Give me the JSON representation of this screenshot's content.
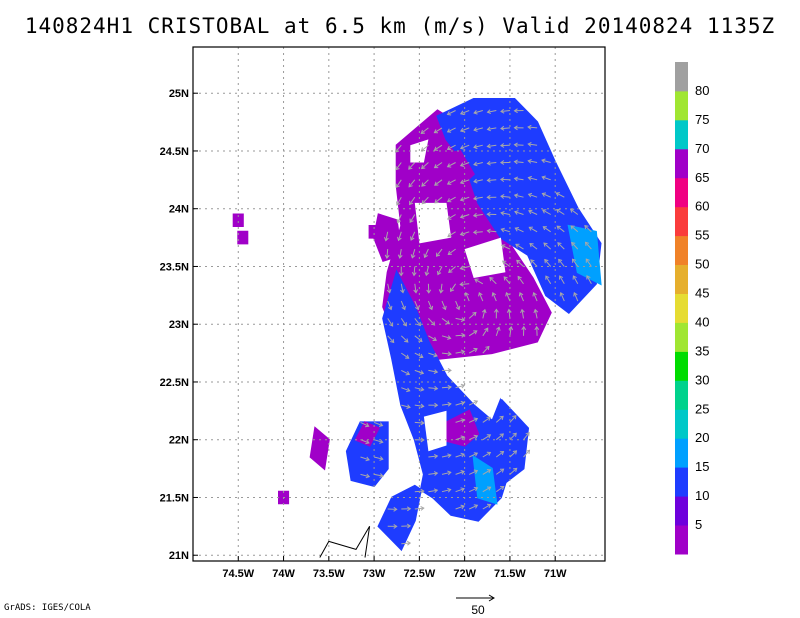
{
  "title": "140824H1 CRISTOBAL at 6.5 km (m/s) Valid 20140824 1135Z",
  "credit": "GrADS: IGES/COLA",
  "vector_reference": {
    "label": "50",
    "value": 50
  },
  "chart_data": {
    "type": "heatmap",
    "title": "140824H1 CRISTOBAL at 6.5 km (m/s) Valid 20140824 1135Z",
    "xlabel": "",
    "ylabel": "",
    "xlim": [
      -75,
      -70.45
    ],
    "ylim": [
      20.95,
      25.4
    ],
    "grid": true,
    "x_ticks": [
      {
        "value": -74.5,
        "label": "74.5W"
      },
      {
        "value": -74.0,
        "label": "74W"
      },
      {
        "value": -73.5,
        "label": "73.5W"
      },
      {
        "value": -73.0,
        "label": "73W"
      },
      {
        "value": -72.5,
        "label": "72.5W"
      },
      {
        "value": -72.0,
        "label": "72W"
      },
      {
        "value": -71.5,
        "label": "71.5W"
      },
      {
        "value": -71.0,
        "label": "71W"
      }
    ],
    "y_ticks": [
      {
        "value": 21.0,
        "label": "21N"
      },
      {
        "value": 21.5,
        "label": "21.5N"
      },
      {
        "value": 22.0,
        "label": "22N"
      },
      {
        "value": 22.5,
        "label": "22.5N"
      },
      {
        "value": 23.0,
        "label": "23N"
      },
      {
        "value": 23.5,
        "label": "23.5N"
      },
      {
        "value": 24.0,
        "label": "24N"
      },
      {
        "value": 24.5,
        "label": "24.5N"
      },
      {
        "value": 25.0,
        "label": "25N"
      }
    ],
    "colorbar": [
      {
        "from": 0,
        "to": 5,
        "color": "#a000c8",
        "label": ""
      },
      {
        "from": 5,
        "to": 10,
        "color": "#6e00dc",
        "label": "5"
      },
      {
        "from": 10,
        "to": 15,
        "color": "#1e3cff",
        "label": "10"
      },
      {
        "from": 15,
        "to": 20,
        "color": "#00a0ff",
        "label": "15"
      },
      {
        "from": 20,
        "to": 25,
        "color": "#00c8c8",
        "label": "20"
      },
      {
        "from": 25,
        "to": 30,
        "color": "#00d28c",
        "label": "25"
      },
      {
        "from": 30,
        "to": 35,
        "color": "#00dc00",
        "label": "30"
      },
      {
        "from": 35,
        "to": 40,
        "color": "#a0e632",
        "label": "35"
      },
      {
        "from": 40,
        "to": 45,
        "color": "#e6dc32",
        "label": "40"
      },
      {
        "from": 45,
        "to": 50,
        "color": "#e6af2d",
        "label": "45"
      },
      {
        "from": 50,
        "to": 55,
        "color": "#f08228",
        "label": "50"
      },
      {
        "from": 55,
        "to": 60,
        "color": "#fa3c3c",
        "label": "55"
      },
      {
        "from": 60,
        "to": 65,
        "color": "#f00082",
        "label": "60"
      },
      {
        "from": 65,
        "to": 70,
        "color": "#a000c8",
        "label": "65"
      },
      {
        "from": 70,
        "to": 75,
        "color": "#00c8c8",
        "label": "70"
      },
      {
        "from": 75,
        "to": 80,
        "color": "#a0e632",
        "label": "75"
      },
      {
        "from": 80,
        "to": 85,
        "color": "#a0a0a0",
        "label": "80"
      }
    ],
    "regions": [
      {
        "name": "main-core",
        "color": "#a000c8",
        "points": [
          [
            -72.75,
            24.55
          ],
          [
            -72.3,
            24.85
          ],
          [
            -71.9,
            24.65
          ],
          [
            -71.6,
            24.25
          ],
          [
            -71.55,
            23.75
          ],
          [
            -71.25,
            23.4
          ],
          [
            -71.05,
            23.1
          ],
          [
            -71.2,
            22.85
          ],
          [
            -71.7,
            22.75
          ],
          [
            -72.3,
            22.7
          ],
          [
            -72.55,
            22.6
          ],
          [
            -72.75,
            22.85
          ],
          [
            -72.9,
            23.15
          ],
          [
            -72.85,
            23.45
          ],
          [
            -72.7,
            23.85
          ],
          [
            -72.75,
            24.2
          ]
        ]
      },
      {
        "name": "north-arc",
        "color": "#1e3cff",
        "points": [
          [
            -72.3,
            24.8
          ],
          [
            -71.9,
            24.95
          ],
          [
            -71.45,
            24.95
          ],
          [
            -71.2,
            24.75
          ],
          [
            -71.0,
            24.4
          ],
          [
            -70.75,
            24.0
          ],
          [
            -70.5,
            23.7
          ],
          [
            -70.55,
            23.35
          ],
          [
            -70.85,
            23.1
          ],
          [
            -71.1,
            23.25
          ],
          [
            -71.3,
            23.6
          ],
          [
            -71.6,
            23.75
          ],
          [
            -71.85,
            24.05
          ],
          [
            -72.0,
            24.4
          ],
          [
            -72.2,
            24.6
          ]
        ]
      },
      {
        "name": "west-band",
        "color": "#1e3cff",
        "points": [
          [
            -72.75,
            23.45
          ],
          [
            -72.55,
            23.15
          ],
          [
            -72.4,
            22.85
          ],
          [
            -72.2,
            22.55
          ],
          [
            -71.9,
            22.3
          ],
          [
            -71.6,
            22.1
          ],
          [
            -71.5,
            21.75
          ],
          [
            -71.6,
            21.5
          ],
          [
            -71.85,
            21.3
          ],
          [
            -72.15,
            21.35
          ],
          [
            -72.35,
            21.5
          ],
          [
            -72.55,
            21.6
          ],
          [
            -72.8,
            21.5
          ],
          [
            -72.95,
            21.25
          ],
          [
            -72.7,
            21.05
          ],
          [
            -72.55,
            21.3
          ],
          [
            -72.45,
            21.7
          ],
          [
            -72.55,
            22.0
          ],
          [
            -72.7,
            22.3
          ],
          [
            -72.8,
            22.7
          ],
          [
            -72.9,
            23.05
          ]
        ]
      },
      {
        "name": "central-spiral",
        "color": "#a000c8",
        "points": [
          [
            -72.2,
            22.15
          ],
          [
            -71.95,
            22.25
          ],
          [
            -71.85,
            22.05
          ],
          [
            -72.0,
            21.95
          ],
          [
            -72.25,
            22.0
          ]
        ]
      },
      {
        "name": "east-tail",
        "color": "#1e3cff",
        "points": [
          [
            -71.6,
            22.35
          ],
          [
            -71.3,
            22.1
          ],
          [
            -71.35,
            21.75
          ],
          [
            -71.6,
            21.6
          ],
          [
            -71.75,
            21.85
          ],
          [
            -71.7,
            22.15
          ]
        ]
      },
      {
        "name": "southwest-patch",
        "color": "#1e3cff",
        "points": [
          [
            -73.15,
            22.15
          ],
          [
            -72.85,
            22.15
          ],
          [
            -72.85,
            21.75
          ],
          [
            -73.0,
            21.6
          ],
          [
            -73.25,
            21.65
          ],
          [
            -73.3,
            21.9
          ]
        ]
      },
      {
        "name": "southwest-core",
        "color": "#a000c8",
        "points": [
          [
            -73.1,
            22.15
          ],
          [
            -72.95,
            22.1
          ],
          [
            -73.05,
            21.95
          ],
          [
            -73.2,
            22.0
          ]
        ]
      },
      {
        "name": "far-west-patch",
        "color": "#a000c8",
        "points": [
          [
            -73.65,
            22.1
          ],
          [
            -73.5,
            22.0
          ],
          [
            -73.55,
            21.75
          ],
          [
            -73.7,
            21.85
          ]
        ]
      },
      {
        "name": "jet-max",
        "color": "#00a0ff",
        "points": [
          [
            -71.9,
            21.85
          ],
          [
            -71.7,
            21.75
          ],
          [
            -71.65,
            21.45
          ],
          [
            -71.85,
            21.5
          ]
        ]
      },
      {
        "name": "east-max",
        "color": "#00a0ff",
        "points": [
          [
            -70.85,
            23.85
          ],
          [
            -70.55,
            23.8
          ],
          [
            -70.5,
            23.35
          ],
          [
            -70.75,
            23.45
          ]
        ]
      },
      {
        "name": "north-core",
        "color": "#a000c8",
        "points": [
          [
            -72.35,
            24.45
          ],
          [
            -72.05,
            24.5
          ],
          [
            -71.9,
            24.3
          ],
          [
            -72.1,
            24.15
          ],
          [
            -72.35,
            24.2
          ]
        ]
      },
      {
        "name": "west-lobe",
        "color": "#a000c8",
        "points": [
          [
            -72.95,
            23.95
          ],
          [
            -72.75,
            23.9
          ],
          [
            -72.7,
            23.6
          ],
          [
            -72.9,
            23.55
          ],
          [
            -73.0,
            23.75
          ]
        ]
      },
      {
        "name": "isolated-pixel-north",
        "color": "#a000c8",
        "points": [
          [
            -74.55,
            23.95
          ],
          [
            -74.45,
            23.95
          ],
          [
            -74.45,
            23.85
          ],
          [
            -74.55,
            23.85
          ]
        ]
      },
      {
        "name": "isolated-pixel-mid",
        "color": "#a000c8",
        "points": [
          [
            -74.5,
            23.8
          ],
          [
            -74.4,
            23.8
          ],
          [
            -74.4,
            23.7
          ],
          [
            -74.5,
            23.7
          ]
        ]
      },
      {
        "name": "isolated-pixel-south",
        "color": "#a000c8",
        "points": [
          [
            -74.05,
            21.55
          ],
          [
            -73.95,
            21.55
          ],
          [
            -73.95,
            21.45
          ],
          [
            -74.05,
            21.45
          ]
        ]
      },
      {
        "name": "isolated-pixel-n2",
        "color": "#a000c8",
        "points": [
          [
            -73.05,
            23.85
          ],
          [
            -72.95,
            23.85
          ],
          [
            -72.95,
            23.75
          ],
          [
            -73.05,
            23.75
          ]
        ]
      }
    ],
    "holes": [
      {
        "points": [
          [
            -72.55,
            24.05
          ],
          [
            -72.2,
            24.05
          ],
          [
            -72.15,
            23.75
          ],
          [
            -72.5,
            23.7
          ]
        ]
      },
      {
        "points": [
          [
            -72.0,
            23.65
          ],
          [
            -71.6,
            23.75
          ],
          [
            -71.55,
            23.45
          ],
          [
            -71.9,
            23.4
          ]
        ]
      },
      {
        "points": [
          [
            -72.6,
            24.55
          ],
          [
            -72.4,
            24.6
          ],
          [
            -72.45,
            24.4
          ],
          [
            -72.6,
            24.4
          ]
        ]
      },
      {
        "points": [
          [
            -71.65,
            22.55
          ],
          [
            -71.35,
            22.6
          ],
          [
            -71.3,
            22.4
          ],
          [
            -71.6,
            22.35
          ]
        ]
      },
      {
        "points": [
          [
            -72.45,
            22.2
          ],
          [
            -72.2,
            22.25
          ],
          [
            -72.2,
            21.95
          ],
          [
            -72.4,
            21.9
          ]
        ]
      }
    ],
    "track": [
      [
        -73.6,
        20.98
      ],
      [
        -73.5,
        21.12
      ],
      [
        -73.2,
        21.05
      ],
      [
        -73.05,
        21.25
      ],
      [
        -73.1,
        20.98
      ]
    ]
  }
}
